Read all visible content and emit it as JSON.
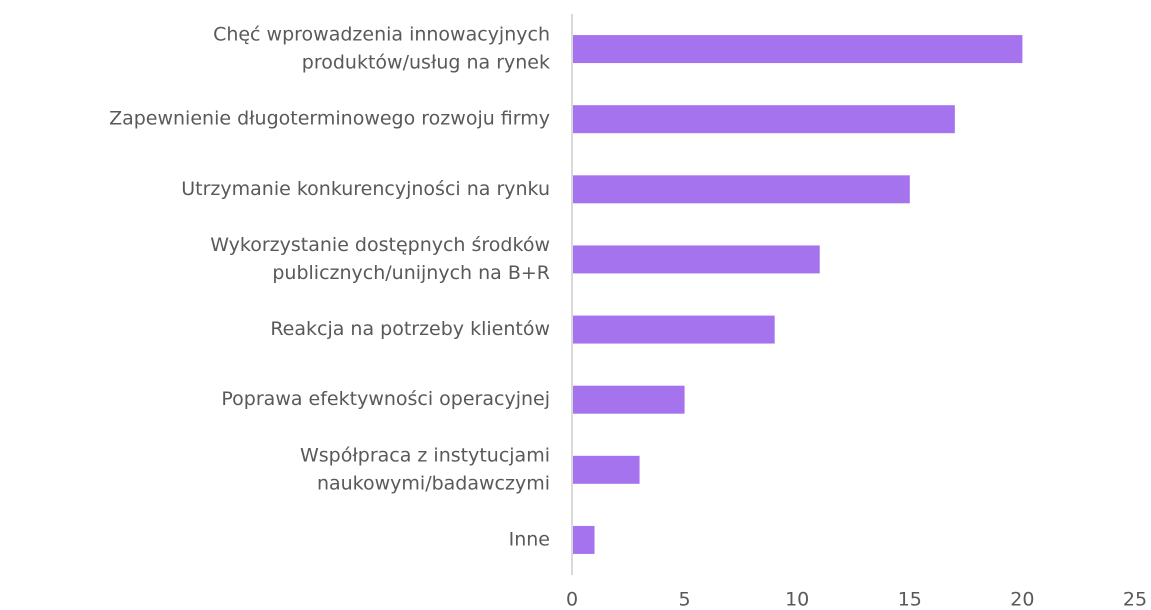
{
  "chart_data": {
    "type": "hbar",
    "categories": [
      [
        "Chęć wprowadzenia innowacyjnych",
        "produktów/usług na rynek"
      ],
      [
        "Zapewnienie długoterminowego rozwoju firmy"
      ],
      [
        "Utrzymanie konkurencyjności na rynku"
      ],
      [
        "Wykorzystanie dostępnych środków",
        "publicznych/unijnych na B+R"
      ],
      [
        "Reakcja na potrzeby klientów"
      ],
      [
        "Poprawa efektywności operacyjnej"
      ],
      [
        "Współpraca z instytucjami",
        "naukowymi/badawczymi"
      ],
      [
        "Inne"
      ]
    ],
    "values": [
      20,
      17,
      15,
      11,
      9,
      5,
      3,
      1
    ],
    "color": "#a673ee",
    "xlim": [
      0,
      25
    ],
    "xticks": [
      0,
      5,
      10,
      15,
      20,
      25
    ],
    "grid": false
  }
}
